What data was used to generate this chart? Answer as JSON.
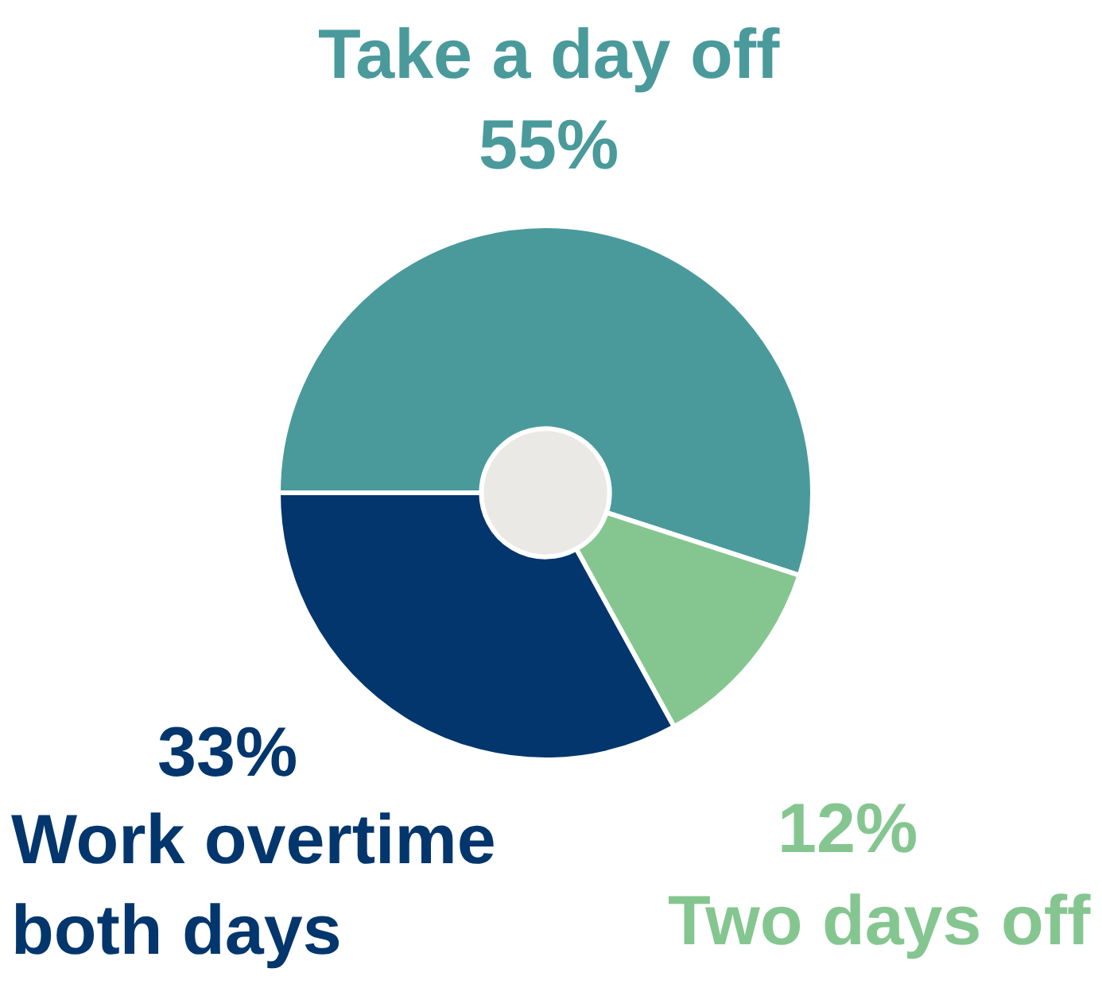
{
  "chart_data": {
    "type": "donut",
    "categories": [
      "Take a day off",
      "Two days off",
      "Work overtime both days"
    ],
    "values": [
      55,
      12,
      33
    ],
    "value_labels": [
      "55%",
      "12%",
      "33%"
    ],
    "colors": [
      "#4a9a9c",
      "#85c690",
      "#03366d"
    ],
    "legend": false
  }
}
